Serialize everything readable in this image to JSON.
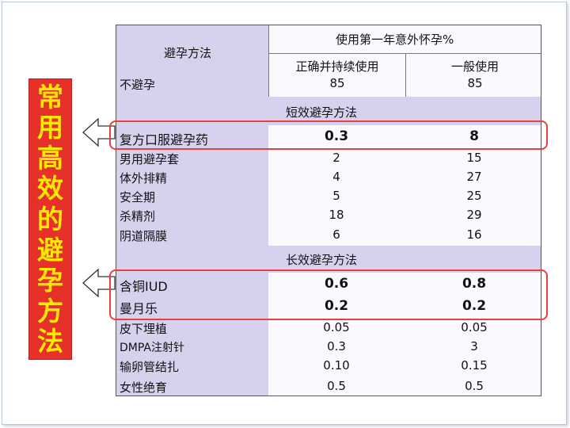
{
  "side_label_chars": [
    "常",
    "用",
    "高",
    "效",
    "的",
    "避",
    "孕",
    "方",
    "法"
  ],
  "header": {
    "method": "避孕方法",
    "rate_title": "使用第一年意外怀孕%",
    "col_correct": "正确并持续使用",
    "col_typical": "一般使用"
  },
  "no_contraception": {
    "name": "不避孕",
    "correct": "85",
    "typical": "85"
  },
  "short_section": "短效避孕方法",
  "long_section": "长效避孕方法",
  "short_rows": [
    {
      "name": "复方口服避孕药",
      "correct": "0.3",
      "typical": "8"
    },
    {
      "name": "男用避孕套",
      "correct": "2",
      "typical": "15"
    },
    {
      "name": "体外排精",
      "correct": "4",
      "typical": "27"
    },
    {
      "name": "安全期",
      "correct": "5",
      "typical": "25"
    },
    {
      "name": "杀精剂",
      "correct": "18",
      "typical": "29"
    },
    {
      "name": "阴道隔膜",
      "correct": "6",
      "typical": "16"
    }
  ],
  "long_rows": [
    {
      "name": "含铜IUD",
      "correct": "0.6",
      "typical": "0.8"
    },
    {
      "name": "曼月乐",
      "correct": "0.2",
      "typical": "0.2"
    },
    {
      "name": "皮下埋植",
      "correct": "0.05",
      "typical": "0.05"
    },
    {
      "name": "DMPA注射针",
      "correct": "0.3",
      "typical": "3"
    },
    {
      "name": "输卵管结扎",
      "correct": "0.10",
      "typical": "0.15"
    },
    {
      "name": "女性绝育",
      "correct": "0.5",
      "typical": "0.5"
    }
  ],
  "colors": {
    "label_bg": "#d7d1ee",
    "highlight": "#e84040",
    "side_bg": "#e8302a",
    "side_text": "#ffe800"
  }
}
